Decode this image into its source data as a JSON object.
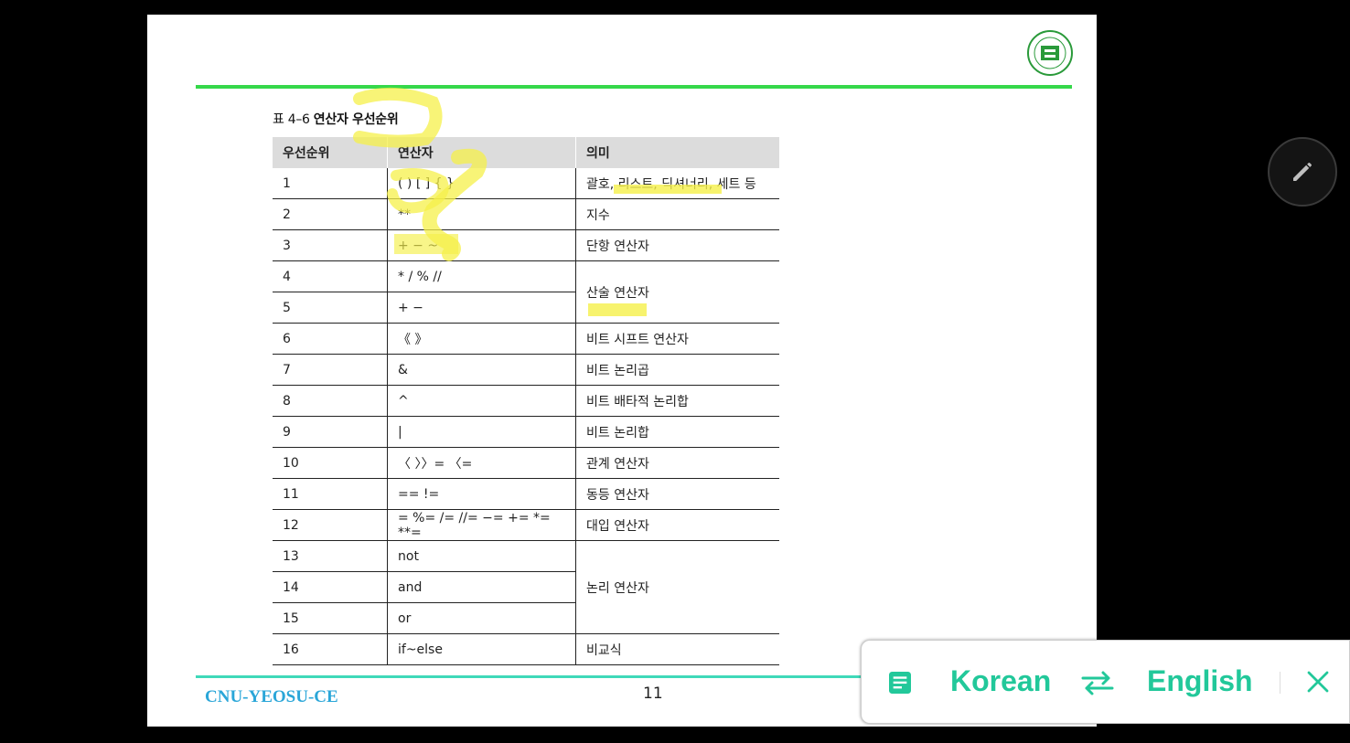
{
  "slide": {
    "caption_label": "표 4–6 ",
    "caption_title": "연산자 우선순위",
    "footer_left": "CNU-YEOSU-CE",
    "page_number": "11"
  },
  "table": {
    "headers": [
      "우선순위",
      "연산자",
      "의미"
    ],
    "rows": [
      {
        "p": "1",
        "op": "( ) [ ] { }",
        "m": "괄호, 리스트, 딕셔너리, 세트 등"
      },
      {
        "p": "2",
        "op": "**",
        "m": "지수"
      },
      {
        "p": "3",
        "op": "+ − ~",
        "m": "단항 연산자"
      },
      {
        "p": "4",
        "op": "* / % //",
        "m": "산술 연산자"
      },
      {
        "p": "5",
        "op": "+ −",
        "m": ""
      },
      {
        "p": "6",
        "op": "《 》",
        "m": "비트 시프트 연산자"
      },
      {
        "p": "7",
        "op": "&",
        "m": "비트 논리곱"
      },
      {
        "p": "8",
        "op": "^",
        "m": "비트 배타적 논리합"
      },
      {
        "p": "9",
        "op": "|",
        "m": "비트 논리합"
      },
      {
        "p": "10",
        "op": "〈 〉〉= 〈=",
        "m": "관계 연산자"
      },
      {
        "p": "11",
        "op": "== !=",
        "m": "동등 연산자"
      },
      {
        "p": "12",
        "op": "= %= /= //= −= += *= **=",
        "m": "대입 연산자"
      },
      {
        "p": "13",
        "op": "not",
        "m": "논리 연산자"
      },
      {
        "p": "14",
        "op": "and",
        "m": ""
      },
      {
        "p": "15",
        "op": "or",
        "m": ""
      },
      {
        "p": "16",
        "op": "if~else",
        "m": "비교식"
      }
    ]
  },
  "translate_bar": {
    "source_lang": "Korean",
    "target_lang": "English",
    "accent_color": "#22c89a"
  },
  "icons": {
    "edit": "pencil-icon",
    "doc": "document-icon",
    "swap": "swap-icon",
    "close": "close-icon"
  }
}
